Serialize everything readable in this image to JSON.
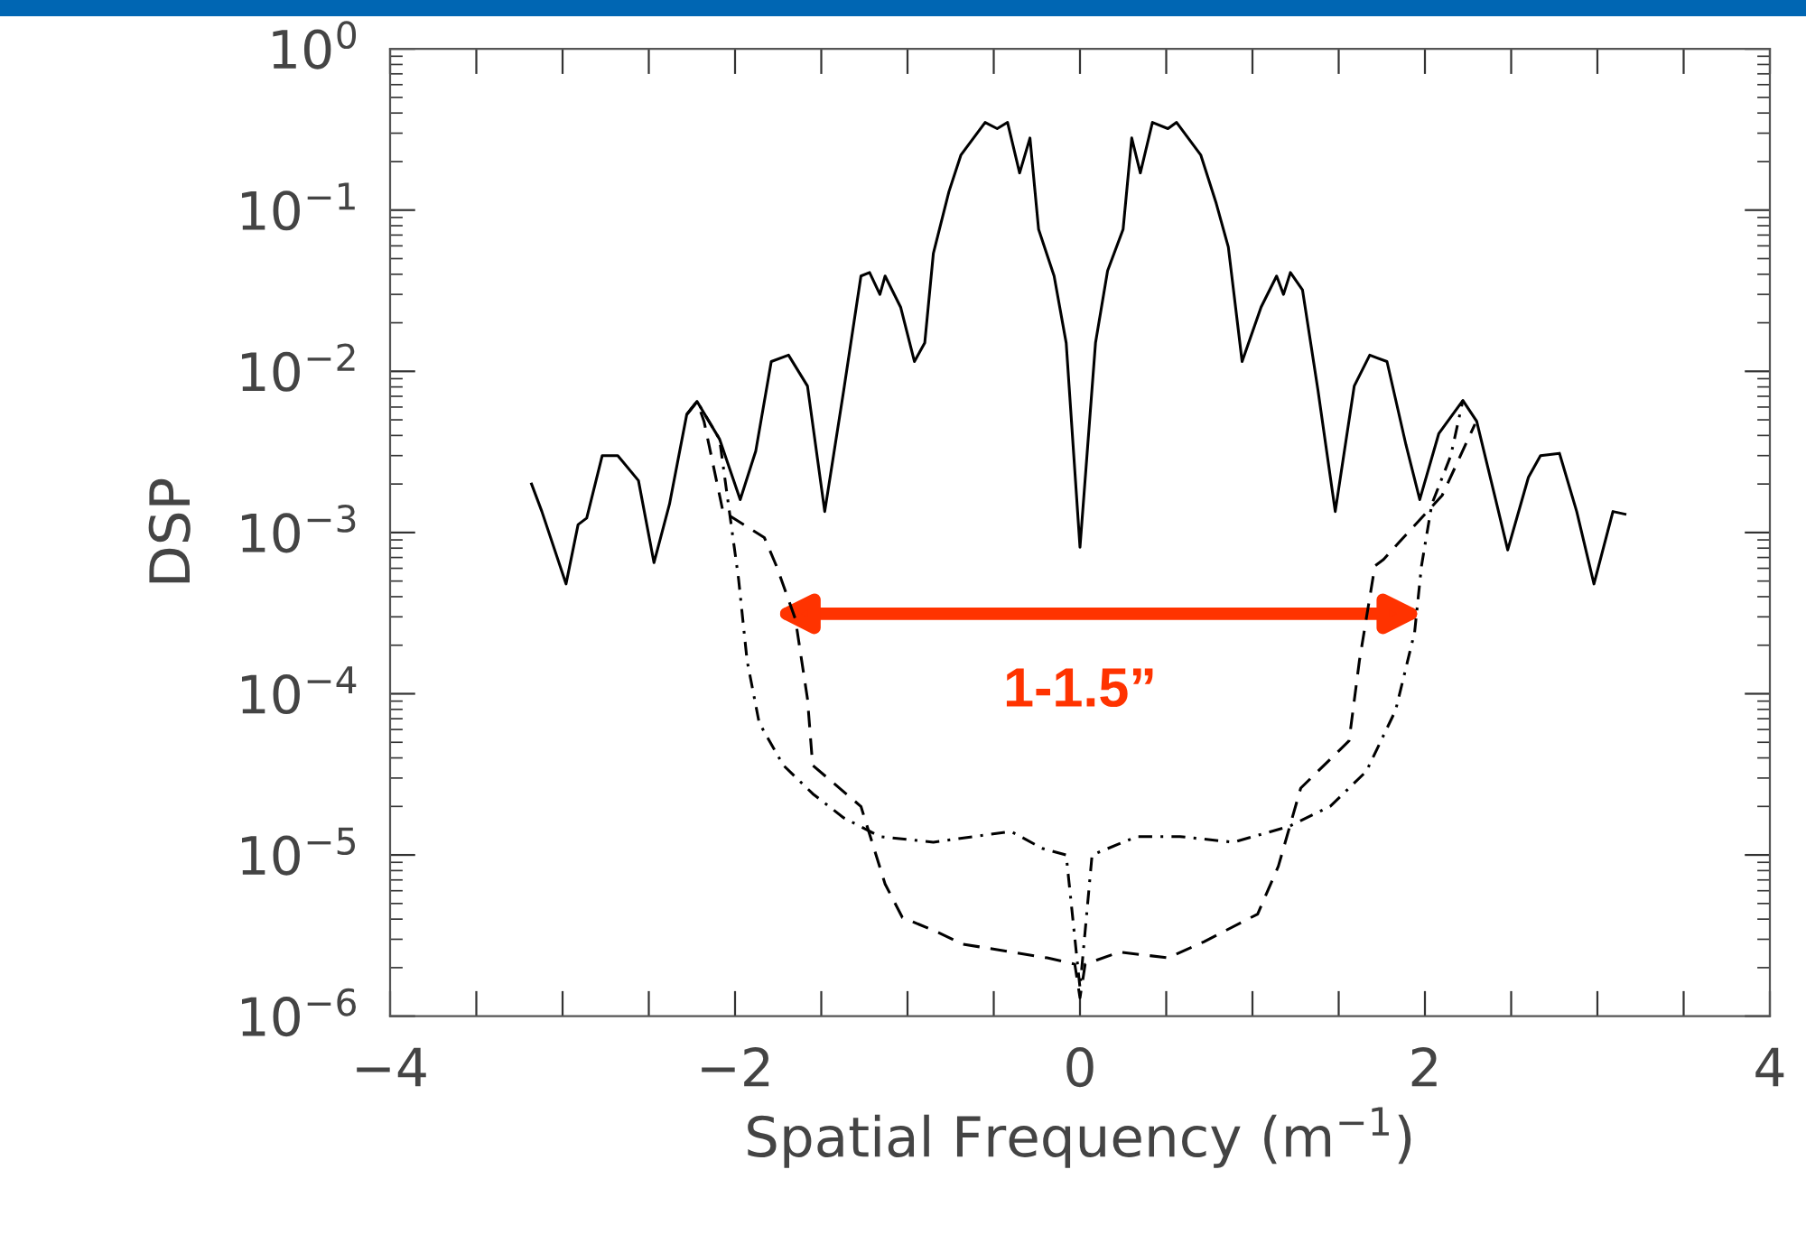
{
  "chart_data": {
    "type": "line",
    "xlabel": "Spatial Frequency (m$^{−1}$)",
    "ylabel": "DSP",
    "log": "y",
    "grid": false,
    "legend": false,
    "xlim": [
      -4,
      4
    ],
    "ylim": [
      1e-06,
      1
    ],
    "xticks": [
      -4,
      {
        "value": -3.5,
        "label": null
      },
      {
        "value": -3,
        "label": null
      },
      {
        "value": -2.5,
        "label": null
      },
      -2,
      {
        "value": -1.5,
        "label": null
      },
      {
        "value": -1,
        "label": null
      },
      {
        "value": -0.5,
        "label": null
      },
      0,
      {
        "value": 0.5,
        "label": null
      },
      {
        "value": 1,
        "label": null
      },
      {
        "value": 1.5,
        "label": null
      },
      2,
      {
        "value": 2.5,
        "label": null
      },
      {
        "value": 3,
        "label": null
      },
      {
        "value": 3.5,
        "label": null
      },
      4
    ],
    "yticks": [
      {
        "value": 1e-06,
        "label": "10$^{−6}$"
      },
      {
        "value": 1e-05,
        "label": "10$^{−5}$"
      },
      {
        "value": 0.0001,
        "label": "10$^{−4}$"
      },
      {
        "value": 0.001,
        "label": "10$^{−3}$"
      },
      {
        "value": 0.01,
        "label": "10$^{−2}$"
      },
      {
        "value": 0.1,
        "label": "10$^{−1}$"
      },
      {
        "value": 1,
        "label": "10$^{0}$"
      }
    ],
    "annotations": [
      "1-1.5”"
    ],
    "series": [
      {
        "color": "#000000",
        "line_style": "solid",
        "x": [
          -3.18,
          -3.12,
          -2.98,
          -2.91,
          -2.86,
          -2.77,
          -2.68,
          -2.56,
          -2.47,
          -2.38,
          -2.28,
          -2.22,
          -2.09,
          -1.97,
          -1.88,
          -1.79,
          -1.69,
          -1.58,
          -1.48,
          -1.37,
          -1.27,
          -1.22,
          -1.16,
          -1.13,
          -1.04,
          -0.96,
          -0.9,
          -0.85,
          -0.76,
          -0.69,
          -0.55,
          -0.48,
          -0.42,
          -0.35,
          -0.29,
          -0.24,
          -0.15,
          -0.08,
          0.0,
          0.09,
          0.16,
          0.25,
          0.3,
          0.35,
          0.42,
          0.51,
          0.56,
          0.7,
          0.79,
          0.86,
          0.94,
          1.05,
          1.14,
          1.18,
          1.22,
          1.29,
          1.38,
          1.48,
          1.59,
          1.68,
          1.78,
          1.89,
          1.97,
          2.08,
          2.22,
          2.3,
          2.41,
          2.48,
          2.6,
          2.67,
          2.78,
          2.88,
          2.98,
          3.09,
          3.16
        ],
        "values": [
          0.002,
          0.00135,
          0.00048,
          0.00112,
          0.00123,
          0.003,
          0.003,
          0.0021,
          0.00065,
          0.0015,
          0.0054,
          0.0065,
          0.0038,
          0.0016,
          0.0032,
          0.0115,
          0.0126,
          0.0081,
          0.00135,
          0.0076,
          0.039,
          0.041,
          0.03,
          0.039,
          0.025,
          0.0115,
          0.015,
          0.054,
          0.13,
          0.22,
          0.35,
          0.32,
          0.35,
          0.17,
          0.28,
          0.076,
          0.039,
          0.015,
          0.00081,
          0.015,
          0.042,
          0.076,
          0.28,
          0.17,
          0.35,
          0.32,
          0.35,
          0.22,
          0.11,
          0.059,
          0.0115,
          0.025,
          0.039,
          0.03,
          0.041,
          0.032,
          0.0076,
          0.00135,
          0.0081,
          0.0126,
          0.0115,
          0.0035,
          0.0016,
          0.0041,
          0.0066,
          0.0049,
          0.0016,
          0.00078,
          0.0022,
          0.003,
          0.0031,
          0.00135,
          0.00048,
          0.00135,
          0.0013
        ]
      },
      {
        "color": "#000000",
        "line_style": "dashed",
        "x": [
          -2.28,
          -2.22,
          -2.18,
          -2.07,
          -1.83,
          -1.76,
          -1.65,
          -1.58,
          -1.55,
          -1.27,
          -1.13,
          -1.03,
          -0.82,
          -0.68,
          -0.4,
          -0.19,
          -0.03,
          0.0,
          0.03,
          0.23,
          0.51,
          0.72,
          1.03,
          1.15,
          1.28,
          1.56,
          1.62,
          1.71,
          1.76,
          1.85,
          2.1,
          2.29
        ],
        "values": [
          0.0054,
          0.0065,
          0.0049,
          0.00135,
          0.00093,
          0.00062,
          0.00029,
          9.3e-05,
          3.6e-05,
          2e-05,
          6.6e-06,
          4.1e-06,
          3.3e-06,
          2.8e-06,
          2.5e-06,
          2.3e-06,
          2.1e-06,
          1.3e-06,
          2.1e-06,
          2.5e-06,
          2.3e-06,
          2.9e-06,
          4.3e-06,
          8.5e-06,
          2.6e-05,
          5.1e-05,
          0.00016,
          0.00062,
          0.00068,
          0.00087,
          0.0017,
          0.0047
        ]
      },
      {
        "color": "#000000",
        "line_style": "dashdot",
        "x": [
          -2.28,
          -2.22,
          -2.09,
          -1.98,
          -1.93,
          -1.86,
          -1.72,
          -1.55,
          -1.37,
          -1.16,
          -0.85,
          -0.4,
          -0.22,
          -0.08,
          0.0,
          0.07,
          0.33,
          0.58,
          0.89,
          1.21,
          1.45,
          1.66,
          1.83,
          1.94,
          1.98,
          2.04,
          2.15,
          2.22
        ],
        "values": [
          0.0054,
          0.0065,
          0.0038,
          0.00052,
          0.00016,
          6.6e-05,
          3.6e-05,
          2.4e-05,
          1.7e-05,
          1.3e-05,
          1.2e-05,
          1.4e-05,
          1.1e-05,
          1e-05,
          1.5e-06,
          1e-05,
          1.3e-05,
          1.3e-05,
          1.2e-05,
          1.5e-05,
          2e-05,
          3.3e-05,
          7.9e-05,
          0.00024,
          0.00062,
          0.0015,
          0.003,
          0.0066
        ]
      }
    ]
  }
}
